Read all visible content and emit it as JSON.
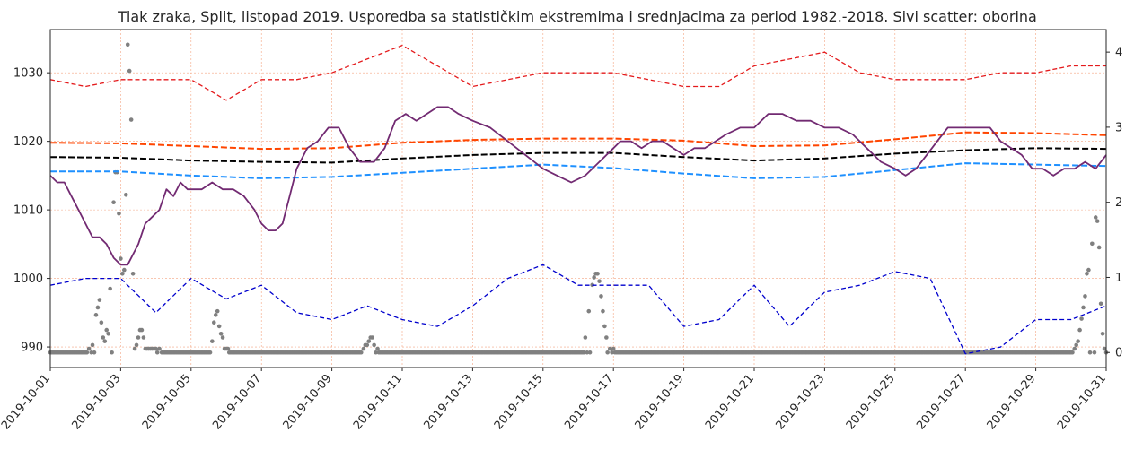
{
  "chart_data": {
    "type": "line",
    "title": "Tlak zraka, Split, listopad 2019. Usporedba sa statističkim ekstremima i srednjacima za period 1982.-2018. Sivi scatter: oborina",
    "xlabel": "",
    "ylabel": "",
    "x_ticks": [
      "2019-10-01",
      "2019-10-03",
      "2019-10-05",
      "2019-10-07",
      "2019-10-09",
      "2019-10-11",
      "2019-10-13",
      "2019-10-15",
      "2019-10-17",
      "2019-10-19",
      "2019-10-21",
      "2019-10-23",
      "2019-10-25",
      "2019-10-27",
      "2019-10-29",
      "2019-10-31"
    ],
    "xlim": [
      0,
      30
    ],
    "ylim": [
      987,
      1036.3
    ],
    "y_ticks": [
      990,
      1000,
      1010,
      1020,
      1030
    ],
    "y2lim": [
      -0.2,
      4.3
    ],
    "y2_ticks": [
      0,
      1,
      2,
      3,
      4
    ],
    "grid": true,
    "series": [
      {
        "color": "#e41a1c",
        "axis": "left",
        "style": "dashed",
        "x": [
          0,
          1,
          2,
          3,
          4,
          5,
          6,
          7,
          8,
          9,
          10,
          11,
          12,
          13,
          14,
          15,
          16,
          17,
          18,
          19,
          20,
          21,
          22,
          23,
          24,
          25,
          26,
          27,
          28,
          29,
          30
        ],
        "y": [
          1029,
          1028,
          1029,
          1029,
          1029,
          1026,
          1029,
          1029,
          1030,
          1032,
          1034,
          1031,
          1028,
          1029,
          1030,
          1030,
          1030,
          1029,
          1028,
          1028,
          1031,
          1032,
          1033,
          1030,
          1029,
          1029,
          1029,
          1030,
          1030,
          1031,
          1031
        ]
      },
      {
        "color": "#ff4500",
        "axis": "left",
        "style": "dashed",
        "x": [
          0,
          2,
          4,
          6,
          8,
          10,
          12,
          14,
          16,
          18,
          20,
          22,
          24,
          26,
          28,
          30
        ],
        "y": [
          1019.8,
          1019.7,
          1019.3,
          1018.9,
          1019.0,
          1019.8,
          1020.2,
          1020.4,
          1020.4,
          1020.1,
          1019.3,
          1019.4,
          1020.3,
          1021.3,
          1021.2,
          1020.9
        ]
      },
      {
        "color": "#000000",
        "axis": "left",
        "style": "dashed",
        "x": [
          0,
          2,
          4,
          6,
          8,
          10,
          12,
          14,
          16,
          18,
          20,
          22,
          24,
          26,
          28,
          30
        ],
        "y": [
          1017.7,
          1017.6,
          1017.2,
          1017.0,
          1016.9,
          1017.5,
          1018.0,
          1018.3,
          1018.3,
          1017.7,
          1017.2,
          1017.5,
          1018.2,
          1018.7,
          1019.0,
          1018.9
        ]
      },
      {
        "color": "#1e90ff",
        "axis": "left",
        "style": "dashed",
        "x": [
          0,
          2,
          4,
          6,
          8,
          10,
          12,
          14,
          16,
          18,
          20,
          22,
          24,
          26,
          28,
          30
        ],
        "y": [
          1015.6,
          1015.6,
          1015.0,
          1014.6,
          1014.8,
          1015.4,
          1016.0,
          1016.6,
          1016.1,
          1015.3,
          1014.6,
          1014.8,
          1015.8,
          1016.8,
          1016.6,
          1016.4
        ]
      },
      {
        "color": "#0000cd",
        "axis": "left",
        "style": "dashed",
        "x": [
          0,
          1,
          2,
          3,
          4,
          5,
          6,
          7,
          8,
          9,
          10,
          11,
          12,
          13,
          14,
          15,
          16,
          17,
          18,
          19,
          20,
          21,
          22,
          23,
          24,
          25,
          26,
          27,
          28,
          29,
          30
        ],
        "y": [
          999,
          1000,
          1000,
          995,
          1000,
          997,
          999,
          995,
          994,
          996,
          994,
          993,
          996,
          1000,
          1002,
          999,
          999,
          999,
          993,
          994,
          999,
          993,
          998,
          999,
          1001,
          1000,
          989,
          990,
          994,
          994,
          996
        ]
      },
      {
        "color": "#722a72",
        "axis": "left",
        "style": "solid",
        "x": [
          0,
          0.2,
          0.4,
          0.6,
          0.8,
          1.0,
          1.2,
          1.4,
          1.6,
          1.8,
          2.0,
          2.1,
          2.2,
          2.3,
          2.5,
          2.7,
          2.9,
          3.1,
          3.3,
          3.5,
          3.7,
          3.9,
          4.1,
          4.3,
          4.6,
          4.9,
          5.2,
          5.5,
          5.8,
          6.0,
          6.2,
          6.4,
          6.6,
          6.8,
          7.0,
          7.3,
          7.6,
          7.9,
          8.2,
          8.5,
          8.8,
          9.0,
          9.2,
          9.5,
          9.8,
          10.1,
          10.4,
          10.7,
          11.0,
          11.3,
          11.6,
          12.0,
          12.5,
          13.0,
          13.5,
          14.0,
          14.4,
          14.8,
          15.2,
          15.6,
          16.0,
          16.2,
          16.5,
          16.8,
          17.1,
          17.4,
          17.7,
          18.0,
          18.3,
          18.6,
          18.9,
          19.2,
          19.6,
          20.0,
          20.4,
          20.8,
          21.2,
          21.6,
          22.0,
          22.4,
          22.8,
          23.2,
          23.6,
          24.0,
          24.3,
          24.6,
          24.9,
          25.2,
          25.5,
          25.8,
          26.1,
          26.4,
          26.7,
          27.0,
          27.3,
          27.6,
          27.9,
          28.2,
          28.5,
          28.8,
          29.1,
          29.4,
          29.7,
          30.0
        ],
        "y": [
          1015,
          1014,
          1014,
          1012,
          1010,
          1008,
          1006,
          1006,
          1005,
          1003,
          1002,
          1002,
          1002,
          1003,
          1005,
          1008,
          1009,
          1010,
          1013,
          1012,
          1014,
          1013,
          1013,
          1013,
          1014,
          1013,
          1013,
          1012,
          1010,
          1008,
          1007,
          1007,
          1008,
          1012,
          1016,
          1019,
          1020,
          1022,
          1022,
          1019,
          1017,
          1017,
          1017,
          1019,
          1023,
          1024,
          1023,
          1024,
          1025,
          1025,
          1024,
          1023,
          1022,
          1020,
          1018,
          1016,
          1015,
          1014,
          1015,
          1017,
          1019,
          1020,
          1020,
          1019,
          1020,
          1020,
          1019,
          1018,
          1019,
          1019,
          1020,
          1021,
          1022,
          1022,
          1024,
          1024,
          1023,
          1023,
          1022,
          1022,
          1021,
          1019,
          1017,
          1016,
          1015,
          1016,
          1018,
          1020,
          1022,
          1022,
          1022,
          1022,
          1022,
          1020,
          1019,
          1018,
          1016,
          1016,
          1015,
          1016,
          1016,
          1017,
          1016,
          1018
        ]
      }
    ],
    "scatter": {
      "color": "#808080",
      "axis": "right",
      "x": [
        1.1,
        1.2,
        1.3,
        1.35,
        1.4,
        1.45,
        1.5,
        1.55,
        1.6,
        1.65,
        1.7,
        1.8,
        1.85,
        1.9,
        1.95,
        2.0,
        2.05,
        2.1,
        2.15,
        2.2,
        2.25,
        2.3,
        2.35,
        2.4,
        2.45,
        2.5,
        2.55,
        2.6,
        2.65,
        2.7,
        2.75,
        2.8,
        2.85,
        2.9,
        2.95,
        3.0,
        3.1,
        4.6,
        4.65,
        4.7,
        4.75,
        4.8,
        4.85,
        4.9,
        4.95,
        5.0,
        5.05,
        8.9,
        8.95,
        9.0,
        9.05,
        9.1,
        9.15,
        9.2,
        9.3,
        15.2,
        15.3,
        15.4,
        15.45,
        15.5,
        15.55,
        15.6,
        15.65,
        15.7,
        15.75,
        15.8,
        15.9,
        16.0,
        29.1,
        29.15,
        29.2,
        29.25,
        29.3,
        29.35,
        29.4,
        29.45,
        29.5,
        29.6,
        29.7,
        29.75,
        29.8,
        29.85,
        29.9,
        29.95
      ],
      "y": [
        0.05,
        0.1,
        0.5,
        0.6,
        0.7,
        0.4,
        0.2,
        0.15,
        0.3,
        0.25,
        0.85,
        2.0,
        2.4,
        2.4,
        1.85,
        1.25,
        1.05,
        1.1,
        2.1,
        4.1,
        3.75,
        3.1,
        1.05,
        0.05,
        0.1,
        0.2,
        0.3,
        0.3,
        0.2,
        0.05,
        0.05,
        0.05,
        0.05,
        0.05,
        0.05,
        0.05,
        0.05,
        0.15,
        0.4,
        0.5,
        0.55,
        0.35,
        0.25,
        0.2,
        0.05,
        0.05,
        0.05,
        0.05,
        0.1,
        0.1,
        0.15,
        0.2,
        0.2,
        0.1,
        0.05,
        0.2,
        0.55,
        0.9,
        1.0,
        1.05,
        1.05,
        0.95,
        0.75,
        0.55,
        0.35,
        0.2,
        0.05,
        0.05,
        0.05,
        0.1,
        0.15,
        0.3,
        0.45,
        0.6,
        0.75,
        1.05,
        1.1,
        1.45,
        1.8,
        1.75,
        1.4,
        0.65,
        0.25,
        0.05
      ]
    }
  }
}
